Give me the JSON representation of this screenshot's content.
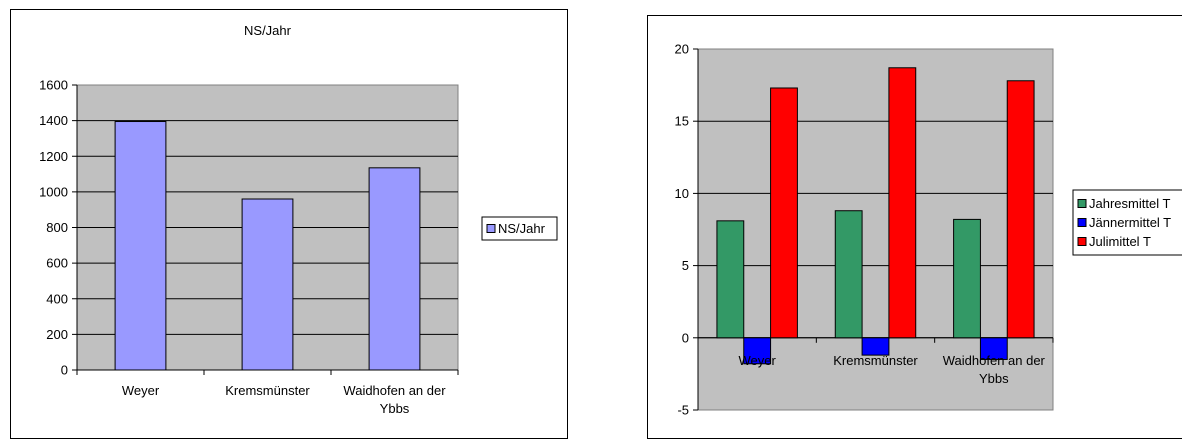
{
  "chart_data": [
    {
      "type": "bar",
      "title": "NS/Jahr",
      "categories": [
        "Weyer",
        "Kremsmünster",
        "Waidhofen an der Ybbs"
      ],
      "category_lines": [
        [
          "Weyer"
        ],
        [
          "Kremsmünster"
        ],
        [
          "Waidhofen an der",
          "Ybbs"
        ]
      ],
      "series": [
        {
          "name": "NS/Jahr",
          "values": [
            1395,
            960,
            1135
          ],
          "color": "#9999ff"
        }
      ],
      "ylim": [
        0,
        1600
      ],
      "yticks": [
        0,
        200,
        400,
        600,
        800,
        1000,
        1200,
        1400,
        1600
      ],
      "grid": true,
      "plot_bg": "#c0c0c0",
      "legend_position": "right"
    },
    {
      "type": "bar",
      "title": "",
      "categories": [
        "Weyer",
        "Kremsmünster",
        "Waidhofen an der Ybbs"
      ],
      "category_lines": [
        [
          "Weyer"
        ],
        [
          "Kremsmünster"
        ],
        [
          "Waidhofen an der",
          "Ybbs"
        ]
      ],
      "series": [
        {
          "name": "Jahresmittel T",
          "values": [
            8.1,
            8.8,
            8.2
          ],
          "color": "#339966"
        },
        {
          "name": "Jännermittel T",
          "values": [
            -1.8,
            -1.2,
            -1.5
          ],
          "color": "#0000ff"
        },
        {
          "name": "Julimittel T",
          "values": [
            17.3,
            18.7,
            17.8
          ],
          "color": "#ff0000"
        }
      ],
      "ylim": [
        -5,
        20
      ],
      "yticks": [
        -5,
        0,
        5,
        10,
        15,
        20
      ],
      "grid": true,
      "plot_bg": "#c0c0c0",
      "legend_position": "right"
    }
  ]
}
